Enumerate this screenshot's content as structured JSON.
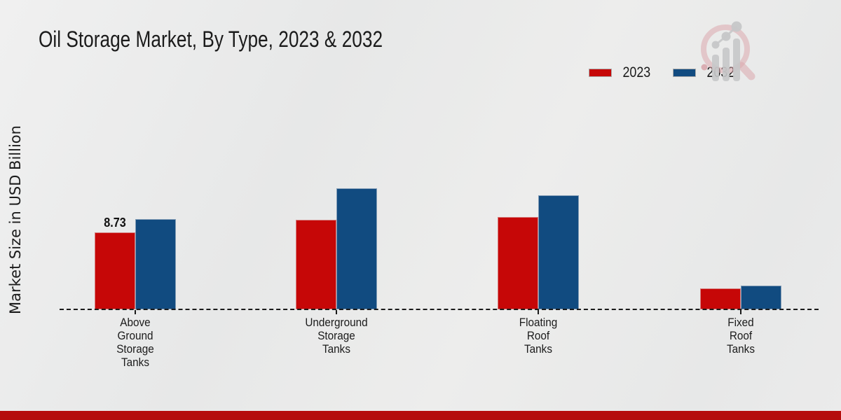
{
  "title": "Oil Storage Market, By Type, 2023 & 2032",
  "ylabel": "Market Size in USD Billion",
  "legend": [
    {
      "label": "2023",
      "color": "#c60707"
    },
    {
      "label": "2032",
      "color": "#114b80"
    }
  ],
  "footer_color": "#b50d0d",
  "chart_data": {
    "type": "bar",
    "title": "Oil Storage Market, By Type, 2023 & 2032",
    "ylabel": "Market Size in USD Billion",
    "xlabel": "",
    "categories": [
      [
        "Above",
        "Ground",
        "Storage",
        "Tanks"
      ],
      [
        "Underground",
        "Storage",
        "Tanks"
      ],
      [
        "Floating",
        "Roof",
        "Tanks"
      ],
      [
        "Fixed",
        "Roof",
        "Tanks"
      ]
    ],
    "series": [
      {
        "name": "2023",
        "color": "#c60707",
        "values": [
          8.73,
          10.15,
          10.5,
          2.4
        ]
      },
      {
        "name": "2032",
        "color": "#114b80",
        "values": [
          10.25,
          13.7,
          12.95,
          2.7
        ]
      }
    ],
    "annotations": [
      {
        "series_index": 0,
        "category_index": 0,
        "text": "8.73"
      }
    ],
    "ylim": [
      0,
      16
    ],
    "grid": false,
    "axis_style": "dashed-baseline-only",
    "legend_position": "top-right"
  }
}
